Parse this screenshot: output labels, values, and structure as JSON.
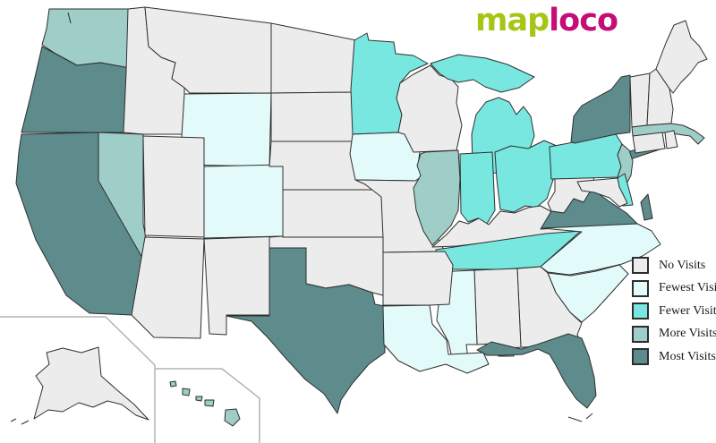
{
  "logo": {
    "map_text": "map",
    "loco_text": "loco",
    "map_color": "#a4c717",
    "loco_color": "#c40d76"
  },
  "legend": {
    "items": [
      {
        "id": "no",
        "label": "No Visits",
        "color": "#ececec"
      },
      {
        "id": "fewest",
        "label": "Fewest Visits",
        "color": "#e2fbfa"
      },
      {
        "id": "fewer",
        "label": "Fewer Visits",
        "color": "#78e7e0"
      },
      {
        "id": "more",
        "label": "More Visits",
        "color": "#9fcdc8"
      },
      {
        "id": "most",
        "label": "Most Visits",
        "color": "#5e8b8c"
      }
    ]
  },
  "map": {
    "border_color": "#2f2f2f",
    "background": "#ffffff",
    "states": [
      {
        "id": "WA",
        "name": "Washington",
        "category": "more"
      },
      {
        "id": "OR",
        "name": "Oregon",
        "category": "most"
      },
      {
        "id": "CA",
        "name": "California",
        "category": "most"
      },
      {
        "id": "NV",
        "name": "Nevada",
        "category": "more"
      },
      {
        "id": "ID",
        "name": "Idaho",
        "category": "no"
      },
      {
        "id": "MT",
        "name": "Montana",
        "category": "no"
      },
      {
        "id": "WY",
        "name": "Wyoming",
        "category": "fewest"
      },
      {
        "id": "UT",
        "name": "Utah",
        "category": "no"
      },
      {
        "id": "CO",
        "name": "Colorado",
        "category": "fewest"
      },
      {
        "id": "AZ",
        "name": "Arizona",
        "category": "no"
      },
      {
        "id": "NM",
        "name": "New Mexico",
        "category": "no"
      },
      {
        "id": "ND",
        "name": "North Dakota",
        "category": "no"
      },
      {
        "id": "SD",
        "name": "South Dakota",
        "category": "no"
      },
      {
        "id": "NE",
        "name": "Nebraska",
        "category": "no"
      },
      {
        "id": "KS",
        "name": "Kansas",
        "category": "no"
      },
      {
        "id": "OK",
        "name": "Oklahoma",
        "category": "no"
      },
      {
        "id": "TX",
        "name": "Texas",
        "category": "most"
      },
      {
        "id": "MN",
        "name": "Minnesota",
        "category": "fewer"
      },
      {
        "id": "IA",
        "name": "Iowa",
        "category": "fewest"
      },
      {
        "id": "MO",
        "name": "Missouri",
        "category": "no"
      },
      {
        "id": "AR",
        "name": "Arkansas",
        "category": "no"
      },
      {
        "id": "LA",
        "name": "Louisiana",
        "category": "fewest"
      },
      {
        "id": "WI",
        "name": "Wisconsin",
        "category": "no"
      },
      {
        "id": "IL",
        "name": "Illinois",
        "category": "more"
      },
      {
        "id": "MI",
        "name": "Michigan",
        "category": "fewer"
      },
      {
        "id": "IN",
        "name": "Indiana",
        "category": "fewer"
      },
      {
        "id": "OH",
        "name": "Ohio",
        "category": "fewer"
      },
      {
        "id": "KY",
        "name": "Kentucky",
        "category": "no"
      },
      {
        "id": "TN",
        "name": "Tennessee",
        "category": "fewer"
      },
      {
        "id": "MS",
        "name": "Mississippi",
        "category": "fewest"
      },
      {
        "id": "AL",
        "name": "Alabama",
        "category": "no"
      },
      {
        "id": "GA",
        "name": "Georgia",
        "category": "no"
      },
      {
        "id": "FL",
        "name": "Florida",
        "category": "most"
      },
      {
        "id": "SC",
        "name": "South Carolina",
        "category": "fewest"
      },
      {
        "id": "NC",
        "name": "North Carolina",
        "category": "fewest"
      },
      {
        "id": "VA",
        "name": "Virginia",
        "category": "most"
      },
      {
        "id": "WV",
        "name": "West Virginia",
        "category": "no"
      },
      {
        "id": "OH2",
        "name": "",
        "category": "no"
      },
      {
        "id": "PA",
        "name": "Pennsylvania",
        "category": "fewer"
      },
      {
        "id": "NY",
        "name": "New York",
        "category": "most"
      },
      {
        "id": "NJ",
        "name": "New Jersey",
        "category": "more"
      },
      {
        "id": "DE",
        "name": "Delaware",
        "category": "fewer"
      },
      {
        "id": "MD",
        "name": "Maryland",
        "category": "no"
      },
      {
        "id": "VT",
        "name": "Vermont",
        "category": "no"
      },
      {
        "id": "NH",
        "name": "New Hampshire",
        "category": "no"
      },
      {
        "id": "ME",
        "name": "Maine",
        "category": "no"
      },
      {
        "id": "MA",
        "name": "Massachusetts",
        "category": "more"
      },
      {
        "id": "CT",
        "name": "Connecticut",
        "category": "no"
      },
      {
        "id": "RI",
        "name": "Rhode Island",
        "category": "no"
      },
      {
        "id": "AK",
        "name": "Alaska",
        "category": "no"
      },
      {
        "id": "HI",
        "name": "Hawaii",
        "category": "more"
      }
    ]
  }
}
